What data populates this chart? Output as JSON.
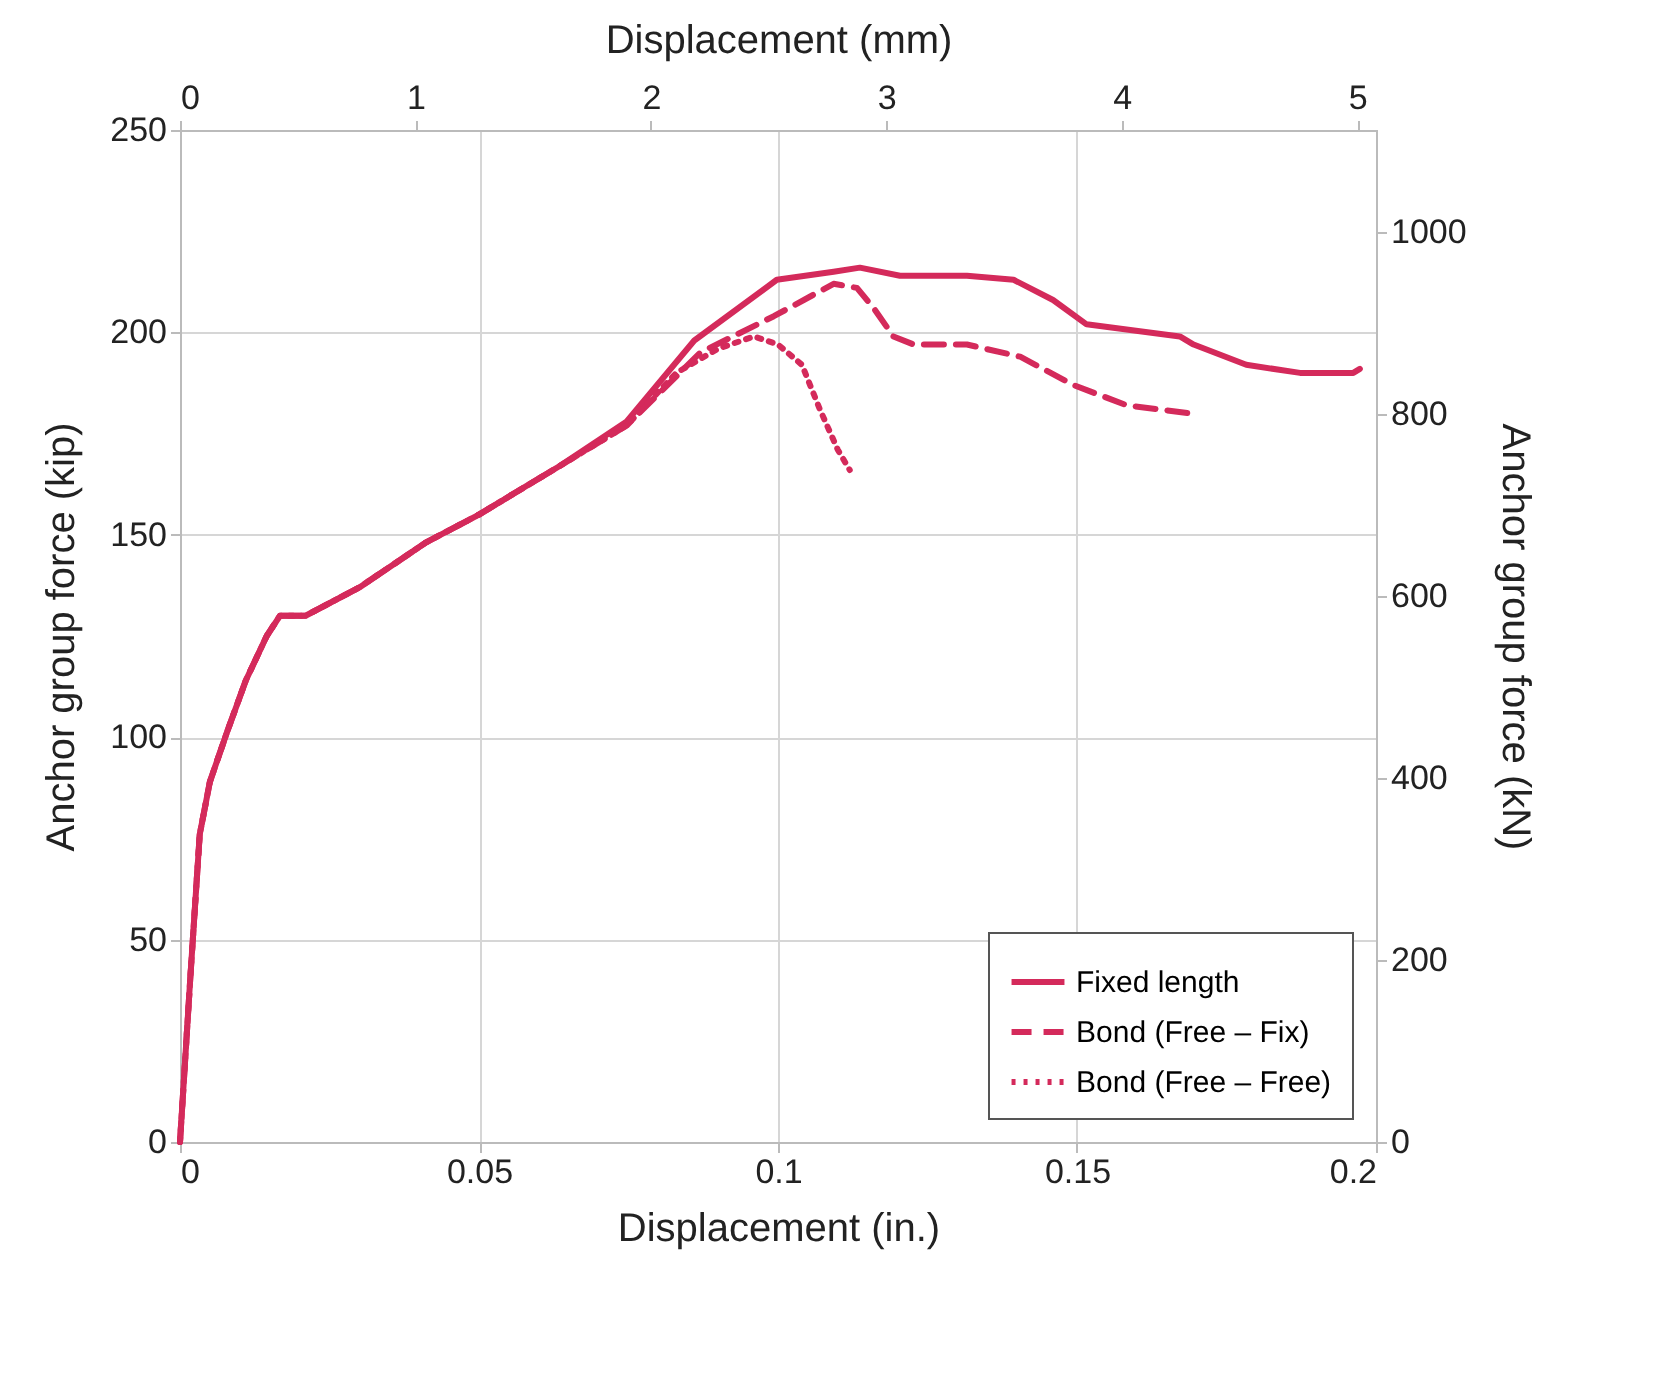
{
  "chart_data": {
    "type": "line",
    "xlabel": "Displacement (in.)",
    "ylabel": "Anchor group force (kip)",
    "x2label": "Displacement (mm)",
    "y2label": "Anchor group force (kN)",
    "xlim": [
      0,
      0.2
    ],
    "xticks": [
      0,
      0.05,
      0.1,
      0.15,
      0.2
    ],
    "ylim": [
      0,
      250
    ],
    "yticks": [
      0,
      50,
      100,
      150,
      200,
      250
    ],
    "x2lim": [
      0,
      5.08
    ],
    "x2ticks": [
      0,
      1,
      2,
      3,
      4,
      5
    ],
    "y2lim": [
      0,
      1112
    ],
    "y2ticks": [
      0,
      200,
      400,
      600,
      800,
      1000
    ],
    "grid": true,
    "legend": "bottom right",
    "series": [
      {
        "name": "Fixed length",
        "color": "#d42a5b",
        "line_style": "solid",
        "x": [
          0,
          0.0017,
          0.0033,
          0.005,
          0.0078,
          0.011,
          0.0145,
          0.0167,
          0.021,
          0.03,
          0.041,
          0.05,
          0.0635,
          0.0747,
          0.086,
          0.0998,
          0.1093,
          0.1137,
          0.1204,
          0.1316,
          0.1394,
          0.146,
          0.1516,
          0.1672,
          0.1695,
          0.1783,
          0.1873,
          0.1962,
          0.1973
        ],
        "values": [
          0,
          40,
          76,
          89,
          101,
          114,
          125,
          130,
          130,
          137,
          148,
          155,
          167,
          178,
          198,
          213,
          215,
          216,
          214,
          214,
          213,
          208,
          202,
          199,
          197,
          192,
          190,
          190,
          191
        ]
      },
      {
        "name": "Bond (Free – Fix)",
        "color": "#d42a5b",
        "line_style": "dashed",
        "x": [
          0,
          0.0017,
          0.0033,
          0.005,
          0.0078,
          0.011,
          0.0145,
          0.0167,
          0.021,
          0.03,
          0.041,
          0.05,
          0.0635,
          0.0747,
          0.087,
          0.0993,
          0.1093,
          0.1132,
          0.116,
          0.1193,
          0.1227,
          0.1316,
          0.1405,
          0.1494,
          0.1583,
          0.1689
        ],
        "values": [
          0,
          40,
          76,
          89,
          101,
          114,
          125,
          130,
          130,
          137,
          148,
          155,
          167,
          177,
          195,
          204,
          212,
          211,
          206,
          199,
          197,
          197,
          194,
          187,
          182,
          180
        ]
      },
      {
        "name": "Bond (Free – Free)",
        "color": "#d42a5b",
        "line_style": "dotted",
        "x": [
          0,
          0.0017,
          0.0033,
          0.005,
          0.0078,
          0.011,
          0.0145,
          0.0167,
          0.021,
          0.03,
          0.041,
          0.05,
          0.0635,
          0.0747,
          0.083,
          0.09,
          0.096,
          0.1,
          0.104,
          0.107,
          0.11,
          0.112
        ],
        "values": [
          0,
          40,
          76,
          89,
          101,
          114,
          125,
          130,
          130,
          137,
          148,
          155,
          167,
          177,
          190,
          196,
          199,
          197,
          192,
          181,
          171,
          166
        ]
      }
    ]
  }
}
